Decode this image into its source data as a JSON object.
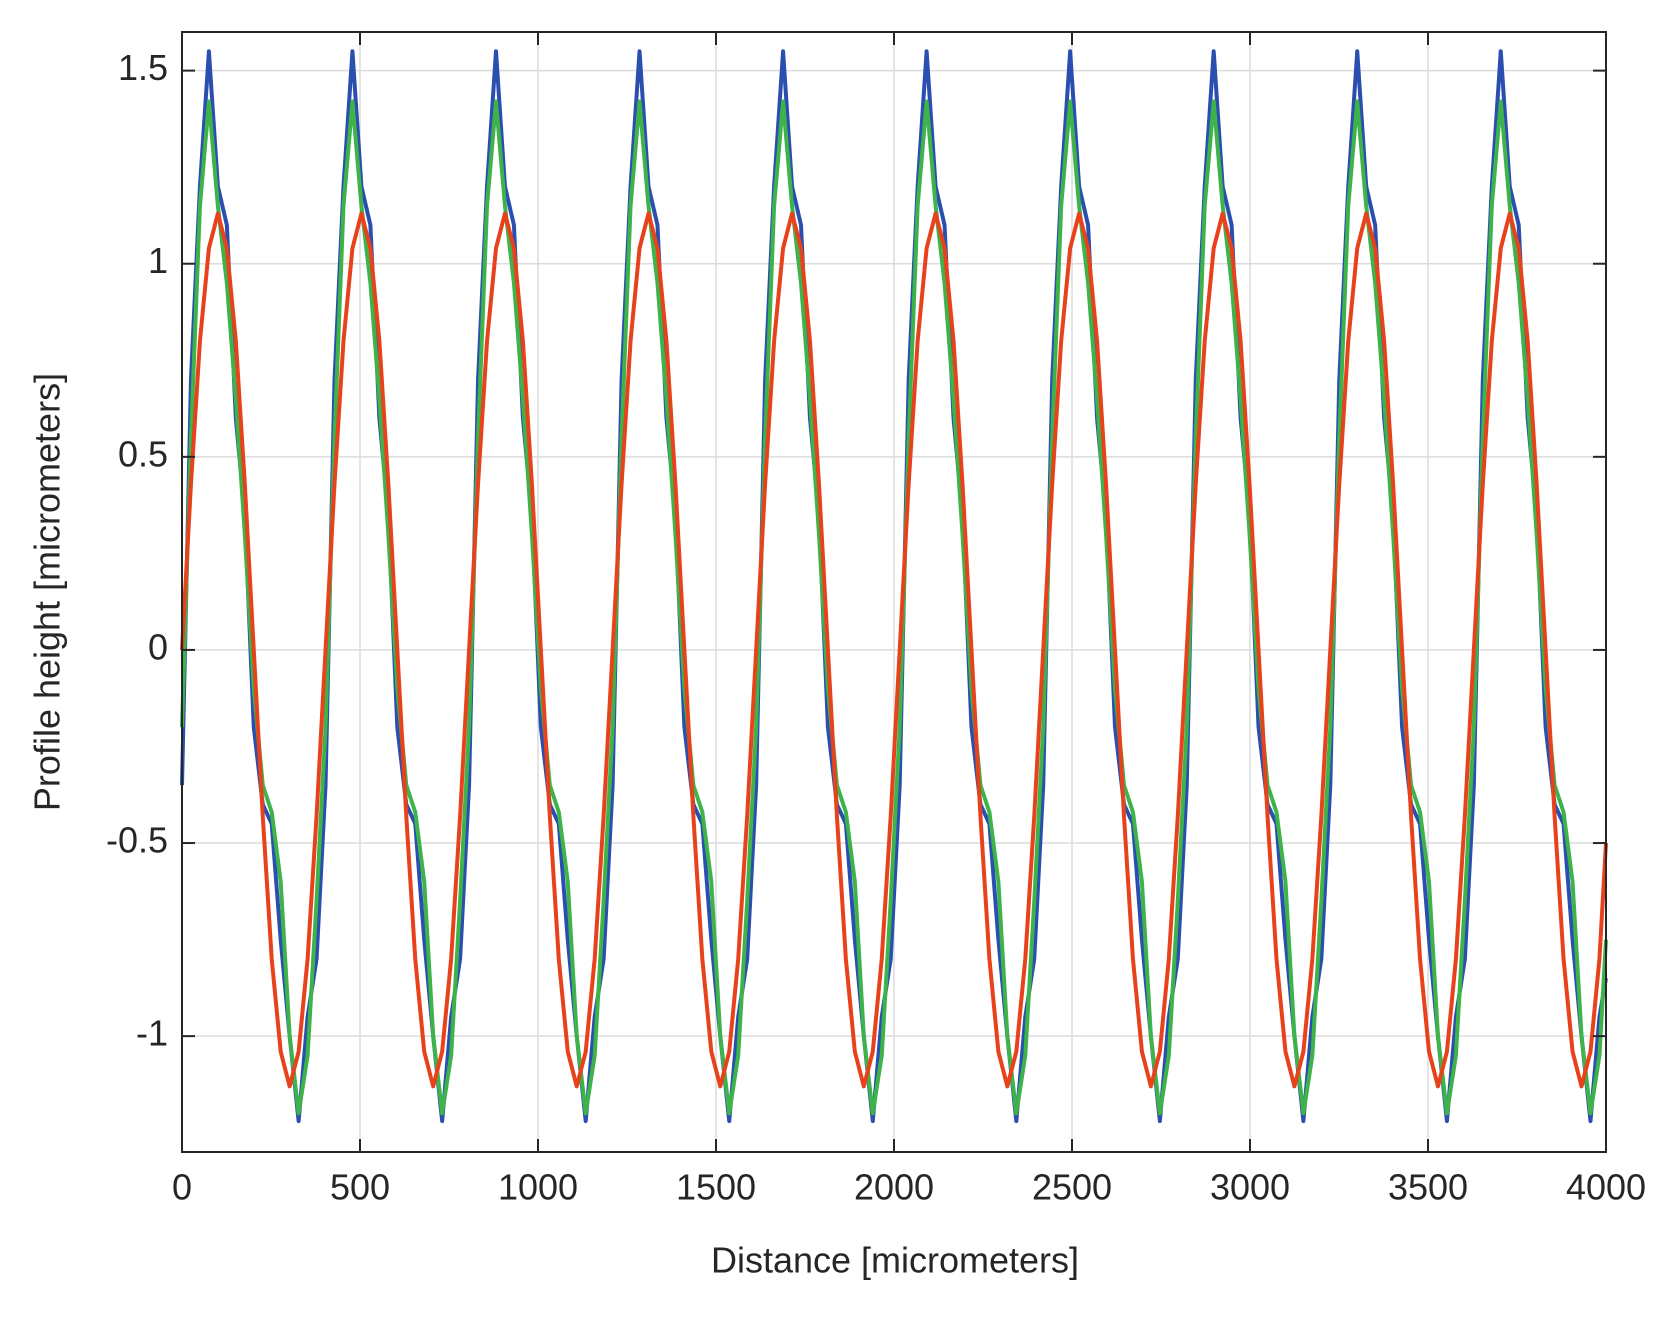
{
  "chart_data": {
    "type": "line",
    "xlabel": "Distance [micrometers]",
    "ylabel": "Profile height [micrometers]",
    "xlim": [
      0,
      4000
    ],
    "xticks": [
      0,
      500,
      1000,
      1500,
      2000,
      2500,
      3000,
      3500,
      4000
    ],
    "ylim": [
      -1.3,
      1.6
    ],
    "yticks": [
      -1,
      -0.5,
      0,
      0.5,
      1,
      1.5
    ],
    "grid": true,
    "x": [
      0,
      25.2,
      50.4,
      75.6,
      100.8,
      126,
      151.2,
      176.4,
      201.6,
      226.8,
      252,
      277.2,
      302.4,
      327.6,
      352.8,
      378,
      403.2,
      428.4,
      453.6,
      478.8,
      504,
      529.2,
      554.4,
      579.6,
      604.8,
      630,
      655.2,
      680.4,
      705.6,
      730.8,
      756,
      781.2,
      806.4,
      831.6,
      856.8,
      882,
      907.2,
      932.4,
      957.6,
      982.8,
      1008,
      1033.2,
      1058.4,
      1083.6,
      1108.8,
      1134,
      1159.2,
      1184.4,
      1209.6,
      1234.8,
      1260,
      1285.2,
      1310.4,
      1335.6,
      1360.8,
      1386,
      1411.2,
      1436.4,
      1461.6,
      1486.8,
      1512,
      1537.2,
      1562.4,
      1587.6,
      1612.8,
      1638,
      1663.2,
      1688.4,
      1713.6,
      1738.8,
      1764,
      1789.2,
      1814.4,
      1839.6,
      1864.8,
      1890,
      1915.2,
      1940.4,
      1965.6,
      1990.8,
      2016,
      2041.2,
      2066.4,
      2091.6,
      2116.8,
      2142,
      2167.2,
      2192.4,
      2217.6,
      2242.8,
      2268,
      2293.2,
      2318.4,
      2343.6,
      2368.8,
      2394,
      2419.2,
      2444.4,
      2469.6,
      2494.8,
      2520,
      2545.2,
      2570.4,
      2595.6,
      2620.8,
      2646,
      2671.2,
      2696.4,
      2721.6,
      2746.8,
      2772,
      2797.2,
      2822.4,
      2847.6,
      2872.8,
      2898,
      2923.2,
      2948.4,
      2973.6,
      2998.8,
      3024,
      3049.2,
      3074.4,
      3099.6,
      3124.8,
      3150,
      3175.2,
      3200.4,
      3225.6,
      3250.8,
      3276,
      3301.2,
      3326.4,
      3351.6,
      3376.8,
      3402,
      3427.2,
      3452.4,
      3477.6,
      3502.8,
      3528,
      3553.2,
      3578.4,
      3603.6,
      3628.8,
      3654,
      3679.2,
      3704.4,
      3729.6,
      3754.8,
      3780,
      3805.2,
      3830.4,
      3855.6,
      3880.8,
      3906,
      3931.2,
      3956.4,
      3981.6,
      4000
    ],
    "series": [
      {
        "color": "#2b4fb0",
        "values": [
          -0.35,
          0.7,
          1.2,
          1.55,
          1.2,
          1.1,
          0.6,
          0.35,
          -0.2,
          -0.4,
          -0.45,
          -0.75,
          -1,
          -1.22,
          -0.95,
          -0.8,
          -0.35,
          0.7,
          1.2,
          1.55,
          1.2,
          1.1,
          0.6,
          0.35,
          -0.2,
          -0.4,
          -0.45,
          -0.75,
          -1,
          -1.22,
          -0.95,
          -0.8,
          -0.35,
          0.7,
          1.2,
          1.55,
          1.2,
          1.1,
          0.6,
          0.35,
          -0.2,
          -0.4,
          -0.45,
          -0.75,
          -1,
          -1.22,
          -0.95,
          -0.8,
          -0.35,
          0.7,
          1.2,
          1.55,
          1.2,
          1.1,
          0.6,
          0.35,
          -0.2,
          -0.4,
          -0.45,
          -0.75,
          -1,
          -1.22,
          -0.95,
          -0.8,
          -0.35,
          0.7,
          1.2,
          1.55,
          1.2,
          1.1,
          0.6,
          0.35,
          -0.2,
          -0.4,
          -0.45,
          -0.75,
          -1,
          -1.22,
          -0.95,
          -0.8,
          -0.35,
          0.7,
          1.2,
          1.55,
          1.2,
          1.1,
          0.6,
          0.35,
          -0.2,
          -0.4,
          -0.45,
          -0.75,
          -1,
          -1.22,
          -0.95,
          -0.8,
          -0.35,
          0.7,
          1.2,
          1.55,
          1.2,
          1.1,
          0.6,
          0.35,
          -0.2,
          -0.4,
          -0.45,
          -0.75,
          -1,
          -1.22,
          -0.95,
          -0.8,
          -0.35,
          0.7,
          1.2,
          1.55,
          1.2,
          1.1,
          0.6,
          0.35,
          -0.2,
          -0.4,
          -0.45,
          -0.75,
          -1,
          -1.22,
          -0.95,
          -0.8,
          -0.35,
          0.7,
          1.2,
          1.55,
          1.2,
          1.1,
          0.6,
          0.35,
          -0.2,
          -0.4,
          -0.45,
          -0.75,
          -1,
          -1.22,
          -0.95,
          -0.8,
          -0.35,
          0.7,
          1.2,
          1.55,
          1.2,
          1.1,
          0.6,
          0.35,
          -0.2,
          -0.4,
          -0.45,
          -0.75,
          -1,
          -1.22,
          -0.95,
          -0.85
        ]
      },
      {
        "color": "#3db34a",
        "values": [
          -0.2,
          0.55,
          1.15,
          1.42,
          1.15,
          0.95,
          0.65,
          0.3,
          -0.1,
          -0.35,
          -0.42,
          -0.6,
          -1,
          -1.2,
          -1.05,
          -0.65,
          -0.2,
          0.55,
          1.15,
          1.42,
          1.15,
          0.95,
          0.65,
          0.3,
          -0.1,
          -0.35,
          -0.42,
          -0.6,
          -1,
          -1.2,
          -1.05,
          -0.65,
          -0.2,
          0.55,
          1.15,
          1.42,
          1.15,
          0.95,
          0.65,
          0.3,
          -0.1,
          -0.35,
          -0.42,
          -0.6,
          -1,
          -1.2,
          -1.05,
          -0.65,
          -0.2,
          0.55,
          1.15,
          1.42,
          1.15,
          0.95,
          0.65,
          0.3,
          -0.1,
          -0.35,
          -0.42,
          -0.6,
          -1,
          -1.2,
          -1.05,
          -0.65,
          -0.2,
          0.55,
          1.15,
          1.42,
          1.15,
          0.95,
          0.65,
          0.3,
          -0.1,
          -0.35,
          -0.42,
          -0.6,
          -1,
          -1.2,
          -1.05,
          -0.65,
          -0.2,
          0.55,
          1.15,
          1.42,
          1.15,
          0.95,
          0.65,
          0.3,
          -0.1,
          -0.35,
          -0.42,
          -0.6,
          -1,
          -1.2,
          -1.05,
          -0.65,
          -0.2,
          0.55,
          1.15,
          1.42,
          1.15,
          0.95,
          0.65,
          0.3,
          -0.1,
          -0.35,
          -0.42,
          -0.6,
          -1,
          -1.2,
          -1.05,
          -0.65,
          -0.2,
          0.55,
          1.15,
          1.42,
          1.15,
          0.95,
          0.65,
          0.3,
          -0.1,
          -0.35,
          -0.42,
          -0.6,
          -1,
          -1.2,
          -1.05,
          -0.65,
          -0.2,
          0.55,
          1.15,
          1.42,
          1.15,
          0.95,
          0.65,
          0.3,
          -0.1,
          -0.35,
          -0.42,
          -0.6,
          -1,
          -1.2,
          -1.05,
          -0.65,
          -0.2,
          0.55,
          1.15,
          1.42,
          1.15,
          0.95,
          0.65,
          0.3,
          -0.1,
          -0.35,
          -0.42,
          -0.6,
          -1,
          -1.2,
          -1.05,
          -0.75
        ]
      },
      {
        "color": "#e8421c",
        "values": [
          0,
          0.43,
          0.8,
          1.04,
          1.13,
          1.04,
          0.8,
          0.43,
          0,
          -0.43,
          -0.8,
          -1.04,
          -1.13,
          -1.04,
          -0.8,
          -0.43,
          0,
          0.43,
          0.8,
          1.04,
          1.13,
          1.04,
          0.8,
          0.43,
          0,
          -0.43,
          -0.8,
          -1.04,
          -1.13,
          -1.04,
          -0.8,
          -0.43,
          0,
          0.43,
          0.8,
          1.04,
          1.13,
          1.04,
          0.8,
          0.43,
          0,
          -0.43,
          -0.8,
          -1.04,
          -1.13,
          -1.04,
          -0.8,
          -0.43,
          0,
          0.43,
          0.8,
          1.04,
          1.13,
          1.04,
          0.8,
          0.43,
          0,
          -0.43,
          -0.8,
          -1.04,
          -1.13,
          -1.04,
          -0.8,
          -0.43,
          0,
          0.43,
          0.8,
          1.04,
          1.13,
          1.04,
          0.8,
          0.43,
          0,
          -0.43,
          -0.8,
          -1.04,
          -1.13,
          -1.04,
          -0.8,
          -0.43,
          0,
          0.43,
          0.8,
          1.04,
          1.13,
          1.04,
          0.8,
          0.43,
          0,
          -0.43,
          -0.8,
          -1.04,
          -1.13,
          -1.04,
          -0.8,
          -0.43,
          0,
          0.43,
          0.8,
          1.04,
          1.13,
          1.04,
          0.8,
          0.43,
          0,
          -0.43,
          -0.8,
          -1.04,
          -1.13,
          -1.04,
          -0.8,
          -0.43,
          0,
          0.43,
          0.8,
          1.04,
          1.13,
          1.04,
          0.8,
          0.43,
          0,
          -0.43,
          -0.8,
          -1.04,
          -1.13,
          -1.04,
          -0.8,
          -0.43,
          0,
          0.43,
          0.8,
          1.04,
          1.13,
          1.04,
          0.8,
          0.43,
          0,
          -0.43,
          -0.8,
          -1.04,
          -1.13,
          -1.04,
          -0.8,
          -0.43,
          0,
          0.43,
          0.8,
          1.04,
          1.13,
          1.04,
          0.8,
          0.43,
          0,
          -0.43,
          -0.8,
          -1.04,
          -1.13,
          -1.04,
          -0.8,
          -0.5
        ]
      }
    ]
  }
}
